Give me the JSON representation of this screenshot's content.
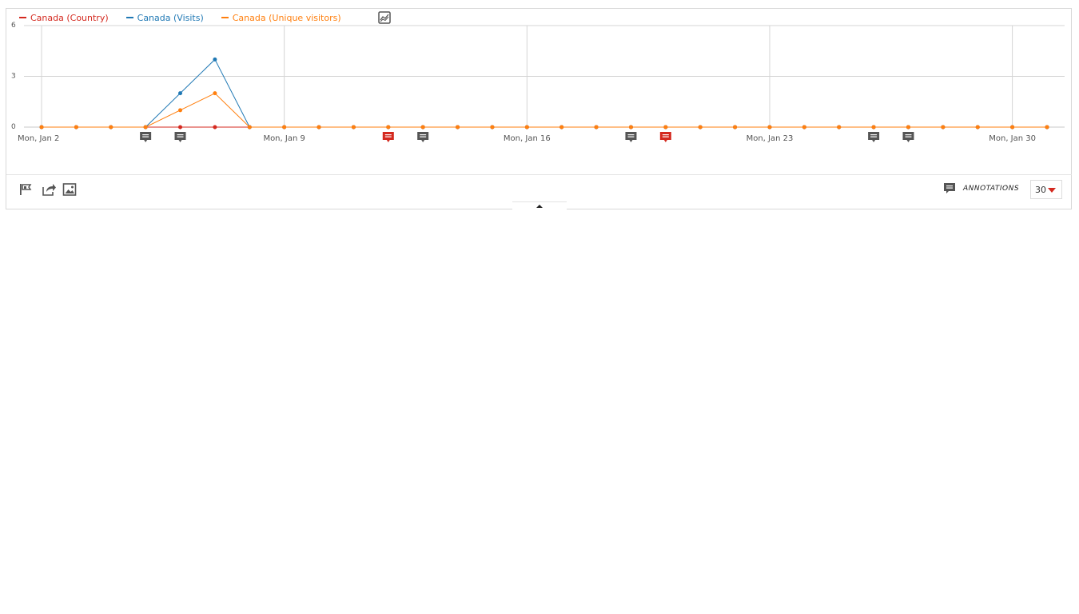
{
  "chart_data": {
    "type": "line",
    "x": [
      "2017-01-02",
      "2017-01-03",
      "2017-01-04",
      "2017-01-05",
      "2017-01-06",
      "2017-01-07",
      "2017-01-08",
      "2017-01-09",
      "2017-01-10",
      "2017-01-11",
      "2017-01-12",
      "2017-01-13",
      "2017-01-14",
      "2017-01-15",
      "2017-01-16",
      "2017-01-17",
      "2017-01-18",
      "2017-01-19",
      "2017-01-20",
      "2017-01-21",
      "2017-01-22",
      "2017-01-23",
      "2017-01-24",
      "2017-01-25",
      "2017-01-26",
      "2017-01-27",
      "2017-01-28",
      "2017-01-29",
      "2017-01-30",
      "2017-01-31"
    ],
    "x_tick_labels": [
      "Mon, Jan 2",
      "Mon, Jan 9",
      "Mon, Jan 16",
      "Mon, Jan 23",
      "Mon, Jan 30"
    ],
    "y_ticks": [
      "6",
      "3",
      "0"
    ],
    "ylim": [
      0,
      6
    ],
    "grid": true,
    "legend_position": "top-left",
    "series": [
      {
        "name": "Canada (Country)",
        "color": "#d4291f",
        "values": [
          0,
          0,
          0,
          0,
          0,
          0,
          0,
          0,
          0,
          0,
          0,
          0,
          0,
          0,
          0,
          0,
          0,
          0,
          0,
          0,
          0,
          0,
          0,
          0,
          0,
          0,
          0,
          0,
          0,
          0
        ]
      },
      {
        "name": "Canada (Visits)",
        "color": "#1f78b4",
        "values": [
          0,
          0,
          0,
          0,
          2,
          4,
          0,
          0,
          0,
          0,
          0,
          0,
          0,
          0,
          0,
          0,
          0,
          0,
          0,
          0,
          0,
          0,
          0,
          0,
          0,
          0,
          0,
          0,
          0,
          0
        ]
      },
      {
        "name": "Canada (Unique visitors)",
        "color": "#ff7f0e",
        "values": [
          0,
          0,
          0,
          0,
          1,
          2,
          0,
          0,
          0,
          0,
          0,
          0,
          0,
          0,
          0,
          0,
          0,
          0,
          0,
          0,
          0,
          0,
          0,
          0,
          0,
          0,
          0,
          0,
          0,
          0
        ]
      }
    ],
    "annotation_markers": [
      {
        "date": "2017-01-05",
        "color": "#555555"
      },
      {
        "date": "2017-01-06",
        "color": "#555555"
      },
      {
        "date": "2017-01-12",
        "color": "#d4291f"
      },
      {
        "date": "2017-01-13",
        "color": "#555555"
      },
      {
        "date": "2017-01-19",
        "color": "#555555"
      },
      {
        "date": "2017-01-20",
        "color": "#d4291f"
      },
      {
        "date": "2017-01-26",
        "color": "#555555"
      },
      {
        "date": "2017-01-27",
        "color": "#555555"
      }
    ]
  },
  "footer": {
    "icons": [
      "annotation-flag-icon",
      "share-icon",
      "image-export-icon"
    ],
    "annotations_label": "ANNOTATIONS",
    "limit_value": "30"
  },
  "colors": {
    "grid": "#d0d0d0",
    "axis_text": "#555555",
    "annotation_icon": "#555555"
  }
}
